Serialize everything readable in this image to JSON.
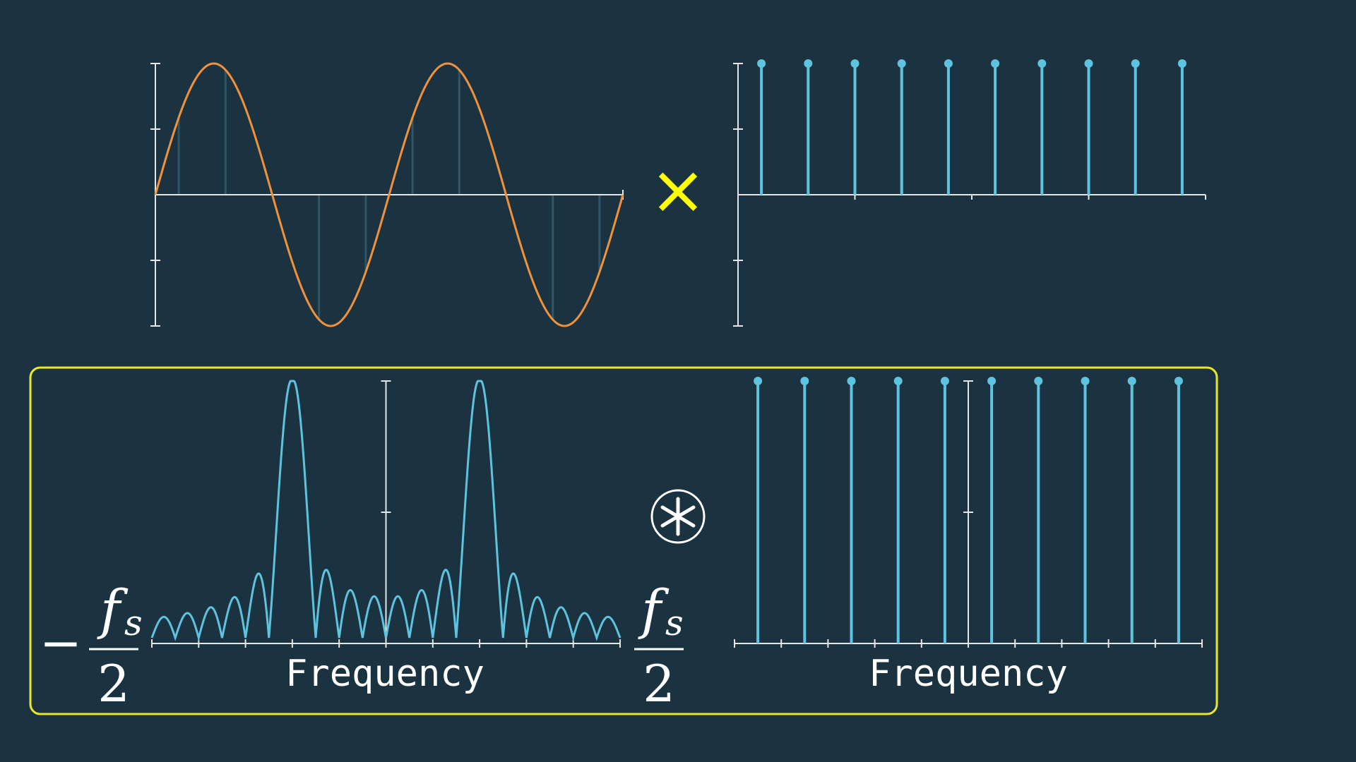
{
  "colors": {
    "background": "#1b3340",
    "axis": "#e6e6e6",
    "sine": "#f0923c",
    "sample": "#5ec3de",
    "ghost": "#2f5566",
    "operator": "#ffff00",
    "frame": "#e8e82a"
  },
  "operators": {
    "multiply": "×",
    "convolve": "⊛"
  },
  "bottom_left": {
    "xlabel": "Frequency",
    "left_limit": {
      "sign": "−",
      "numerator": "f",
      "subscript": "s",
      "denominator": "2"
    },
    "right_limit": {
      "numerator": "f",
      "subscript": "s",
      "denominator": "2"
    }
  },
  "bottom_right": {
    "xlabel": "Frequency"
  },
  "chart_data": [
    {
      "type": "line",
      "panel": "top-left",
      "title": "",
      "xlabel": "",
      "ylabel": "",
      "series": [
        {
          "function": "sin",
          "periods": 2,
          "amplitude": 1
        }
      ],
      "xlim": [
        0,
        2
      ],
      "ylim": [
        -1,
        1
      ],
      "ghost_samples_x": [
        0.1,
        0.3,
        0.7,
        0.9,
        1.1,
        1.3,
        1.7,
        1.9
      ],
      "grid": false
    },
    {
      "type": "scatter",
      "panel": "top-right",
      "style": "stem",
      "title": "",
      "x": [
        0.1,
        0.3,
        0.5,
        0.7,
        0.9,
        1.1,
        1.3,
        1.5,
        1.7,
        1.9
      ],
      "values": [
        1,
        1,
        1,
        1,
        1,
        1,
        1,
        1,
        1,
        1
      ],
      "xlim": [
        0,
        2
      ],
      "ylim": [
        -1,
        1
      ],
      "grid": false
    },
    {
      "type": "line",
      "panel": "bottom-left",
      "title": "",
      "xlabel": "Frequency",
      "description_values": {
        "peaks_at": [
          -0.4,
          0.4
        ],
        "peak_height": 1,
        "mainlobe_halfwidth": 0.05
      },
      "xlim": [
        -1,
        1
      ],
      "ylim": [
        0,
        1
      ],
      "grid": false
    },
    {
      "type": "scatter",
      "panel": "bottom-right",
      "style": "stem",
      "title": "",
      "xlabel": "Frequency",
      "x": [
        -0.9,
        -0.7,
        -0.5,
        -0.3,
        -0.1,
        0.1,
        0.3,
        0.5,
        0.7,
        0.9
      ],
      "values": [
        1,
        1,
        1,
        1,
        1,
        1,
        1,
        1,
        1,
        1
      ],
      "xlim": [
        -1,
        1
      ],
      "ylim": [
        0,
        1
      ],
      "grid": false
    }
  ]
}
